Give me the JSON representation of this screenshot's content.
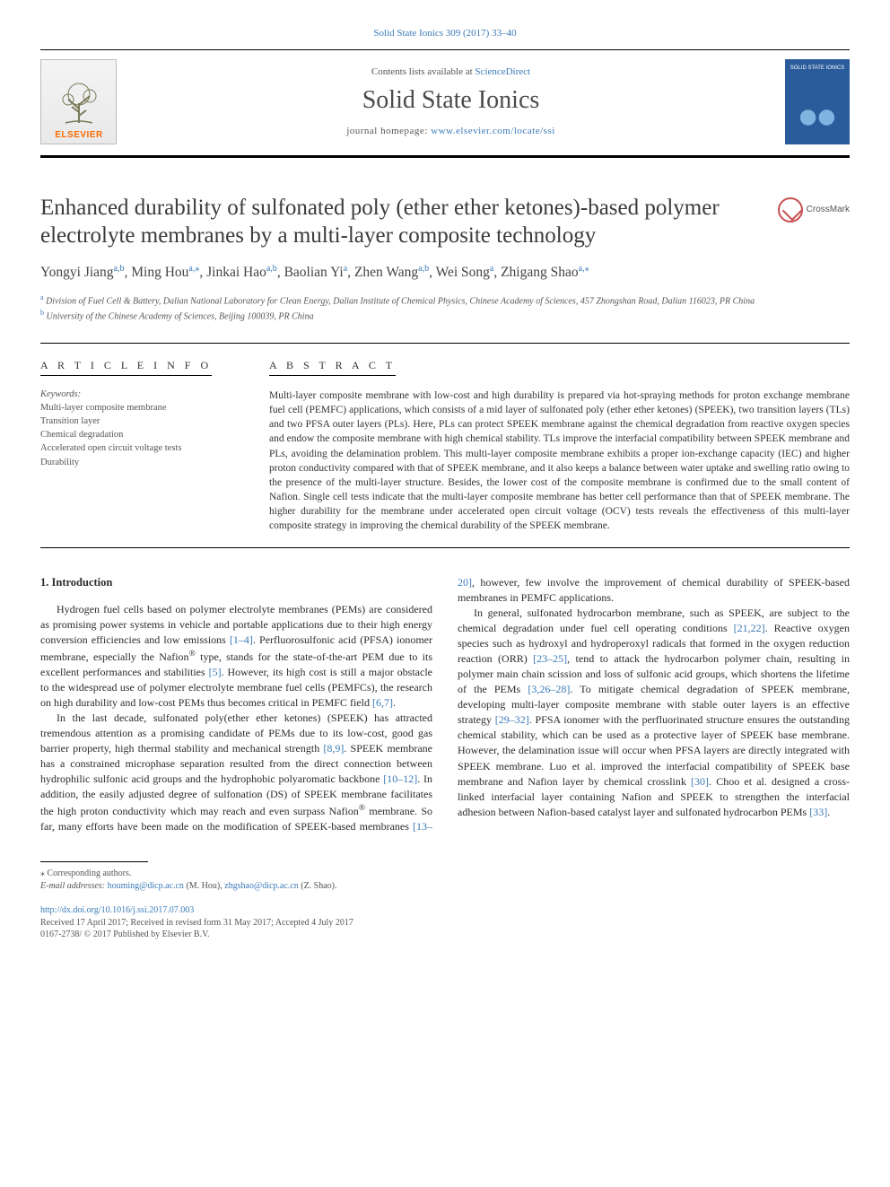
{
  "journal_ref": "Solid State Ionics 309 (2017) 33–40",
  "banner": {
    "contents_prefix": "Contents lists available at ",
    "contents_link": "ScienceDirect",
    "journal_title": "Solid State Ionics",
    "home_prefix": "journal homepage: ",
    "home_url": "www.elsevier.com/locate/ssi",
    "publisher": "ELSEVIER",
    "cover_label": "SOLID STATE IONICS"
  },
  "crossmark": "CrossMark",
  "title": "Enhanced durability of sulfonated poly (ether ether ketones)-based polymer electrolyte membranes by a multi-layer composite technology",
  "authors_html": "Yongyi Jiang<sup class='sup'>a,b</sup>, Ming Hou<sup class='sup'>a,⁎</sup>, Jinkai Hao<sup class='sup'>a,b</sup>, Baolian Yi<sup class='sup'>a</sup>, Zhen Wang<sup class='sup'>a,b</sup>, Wei Song<sup class='sup'>a</sup>, Zhigang Shao<sup class='sup'>a,⁎</sup>",
  "affiliations": [
    {
      "key": "a",
      "text": "Division of Fuel Cell & Battery, Dalian National Laboratory for Clean Energy, Dalian Institute of Chemical Physics, Chinese Academy of Sciences, 457 Zhongshan Road, Dalian 116023, PR China"
    },
    {
      "key": "b",
      "text": "University of the Chinese Academy of Sciences, Beijing 100039, PR China"
    }
  ],
  "article_info_heading": "A R T I C L E  I N F O",
  "abstract_heading": "A B S T R A C T",
  "keywords_label": "Keywords:",
  "keywords": [
    "Multi-layer composite membrane",
    "Transition layer",
    "Chemical degradation",
    "Accelerated open circuit voltage tests",
    "Durability"
  ],
  "abstract": "Multi-layer composite membrane with low-cost and high durability is prepared via hot-spraying methods for proton exchange membrane fuel cell (PEMFC) applications, which consists of a mid layer of sulfonated poly (ether ether ketones) (SPEEK), two transition layers (TLs) and two PFSA outer layers (PLs). Here, PLs can protect SPEEK membrane against the chemical degradation from reactive oxygen species and endow the composite membrane with high chemical stability. TLs improve the interfacial compatibility between SPEEK membrane and PLs, avoiding the delamination problem. This multi-layer composite membrane exhibits a proper ion-exchange capacity (IEC) and higher proton conductivity compared with that of SPEEK membrane, and it also keeps a balance between water uptake and swelling ratio owing to the presence of the multi-layer structure. Besides, the lower cost of the composite membrane is confirmed due to the small content of Nafion. Single cell tests indicate that the multi-layer composite membrane has better cell performance than that of SPEEK membrane. The higher durability for the membrane under accelerated open circuit voltage (OCV) tests reveals the effectiveness of this multi-layer composite strategy in improving the chemical durability of the SPEEK membrane.",
  "section1_heading": "1. Introduction",
  "para1": "Hydrogen fuel cells based on polymer electrolyte membranes (PEMs) are considered as promising power systems in vehicle and portable applications due to their high energy conversion efficiencies and low emissions <span class='ref'>[1–4]</span>. Perfluorosulfonic acid (PFSA) ionomer membrane, especially the Nafion<span class='reg'>®</span> type, stands for the state-of-the-art PEM due to its excellent performances and stabilities <span class='ref'>[5]</span>. However, its high cost is still a major obstacle to the widespread use of polymer electrolyte membrane fuel cells (PEMFCs), the research on high durability and low-cost PEMs thus becomes critical in PEMFC field <span class='ref'>[6,7]</span>.",
  "para2": "In the last decade, sulfonated poly(ether ether ketones) (SPEEK) has attracted tremendous attention as a promising candidate of PEMs due to its low-cost, good gas barrier property, high thermal stability and mechanical strength <span class='ref'>[8,9]</span>. SPEEK membrane has a constrained microphase separation resulted from the direct connection between hydrophilic sulfonic acid groups and the hydrophobic polyaromatic backbone <span class='ref'>[10–12]</span>. In addition, the easily adjusted degree of sulfonation (DS) of SPEEK membrane facilitates the high proton conductivity which may reach and even surpass Nafion<span class='reg'>®</span> membrane. So far, many efforts have been made on the modification of SPEEK-based membranes <span class='ref'>[13–20]</span>, however, few involve the improvement of chemical durability of SPEEK-based membranes in PEMFC applications.",
  "para3": "In general, sulfonated hydrocarbon membrane, such as SPEEK, are subject to the chemical degradation under fuel cell operating conditions <span class='ref'>[21,22]</span>. Reactive oxygen species such as hydroxyl and hydroperoxyl radicals that formed in the oxygen reduction reaction (ORR) <span class='ref'>[23–25]</span>, tend to attack the hydrocarbon polymer chain, resulting in polymer main chain scission and loss of sulfonic acid groups, which shortens the lifetime of the PEMs <span class='ref'>[3,26–28]</span>. To mitigate chemical degradation of SPEEK membrane, developing multi-layer composite membrane with stable outer layers is an effective strategy <span class='ref'>[29–32]</span>. PFSA ionomer with the perfluorinated structure ensures the outstanding chemical stability, which can be used as a protective layer of SPEEK base membrane. However, the delamination issue will occur when PFSA layers are directly integrated with SPEEK membrane. Luo et al. improved the interfacial compatibility of SPEEK base membrane and Nafion layer by chemical crosslink <span class='ref'>[30]</span>. Choo et al. designed a cross-linked interfacial layer containing Nafion and SPEEK to strengthen the interfacial adhesion between Nafion-based catalyst layer and sulfonated hydrocarbon PEMs <span class='ref'>[33]</span>.",
  "corr_label": "⁎ Corresponding authors.",
  "email_label": "E-mail addresses:",
  "emails": [
    {
      "addr": "houming@dicp.ac.cn",
      "who": "(M. Hou)"
    },
    {
      "addr": "zhgshao@dicp.ac.cn",
      "who": "(Z. Shao)."
    }
  ],
  "doi": "http://dx.doi.org/10.1016/j.ssi.2017.07.003",
  "history": "Received 17 April 2017; Received in revised form 31 May 2017; Accepted 4 July 2017",
  "copyright": "0167-2738/ © 2017 Published by Elsevier B.V.",
  "colors": {
    "link": "#3a7ab8",
    "elsevier_orange": "#ff6a00",
    "cover_bg": "#2a5b9a",
    "crossmark_ring": "#c94f4f"
  }
}
